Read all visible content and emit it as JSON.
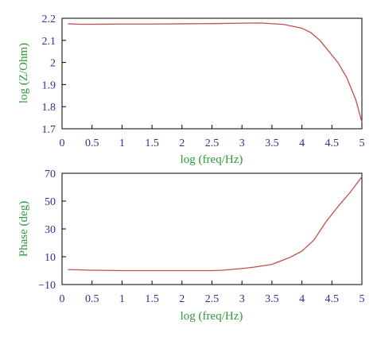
{
  "colors": {
    "axis": "#000000",
    "tick_text": "#2e3192",
    "title_text": "#2e9a3a",
    "line": "#c0504d"
  },
  "chart_data": [
    {
      "type": "line",
      "xlabel": "log (freq/Hz)",
      "ylabel": "log (Z/Ohm)",
      "xlim": [
        0,
        5
      ],
      "ylim": [
        1.7,
        2.2
      ],
      "xticks": [
        "0",
        "0.5",
        "1",
        "1.5",
        "2",
        "2.5",
        "3",
        "3.5",
        "4",
        "4.5",
        "5"
      ],
      "yticks": [
        "1.7",
        "1.8",
        "1.9",
        "2",
        "2.1",
        "2.2"
      ],
      "grid": false,
      "series": [
        {
          "x": [
            0.1,
            0.3,
            0.5,
            1.0,
            1.5,
            2.0,
            2.5,
            3.0,
            3.3,
            3.7,
            4.0,
            4.15,
            4.3,
            4.45,
            4.6,
            4.75,
            4.9,
            5.0
          ],
          "y": [
            2.175,
            2.173,
            2.173,
            2.174,
            2.174,
            2.175,
            2.176,
            2.178,
            2.179,
            2.172,
            2.155,
            2.135,
            2.1,
            2.05,
            2.0,
            1.93,
            1.83,
            1.73
          ]
        }
      ]
    },
    {
      "type": "line",
      "xlabel": "log (freq/Hz)",
      "ylabel": "Phase (deg)",
      "xlim": [
        0,
        5
      ],
      "ylim": [
        -10,
        70
      ],
      "xticks": [
        "0",
        "0.5",
        "1",
        "1.5",
        "2",
        "2.5",
        "3",
        "3.5",
        "4",
        "4.5",
        "5"
      ],
      "yticks": [
        "−10",
        "10",
        "30",
        "50",
        "70"
      ],
      "grid": false,
      "series": [
        {
          "x": [
            0.1,
            0.5,
            1.0,
            1.5,
            2.0,
            2.5,
            2.65,
            3.0,
            3.2,
            3.5,
            3.8,
            4.0,
            4.2,
            4.4,
            4.6,
            4.8,
            5.0
          ],
          "y": [
            0.8,
            0.3,
            0.0,
            0.0,
            0.0,
            0.0,
            0.2,
            1.5,
            2.5,
            4.5,
            9.5,
            14.0,
            22.0,
            35.0,
            46.0,
            56.0,
            67.5
          ]
        }
      ]
    }
  ]
}
